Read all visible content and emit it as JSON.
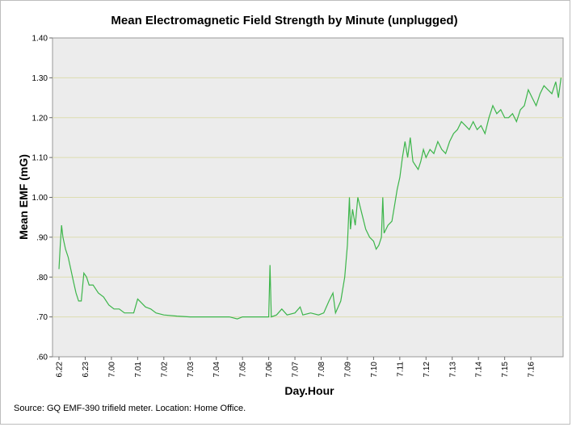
{
  "chart_data": {
    "type": "line",
    "title": "Mean Electromagnetic Field Strength by Minute (unplugged)",
    "xlabel": "Day.Hour",
    "ylabel": "Mean EMF (mG)",
    "ylim": [
      0.6,
      1.4
    ],
    "yticks": [
      "1.40",
      "1.30",
      "1.20",
      "1.10",
      "1.00",
      ".90",
      ".80",
      ".70",
      ".60"
    ],
    "ytick_values": [
      1.4,
      1.3,
      1.2,
      1.1,
      1.0,
      0.9,
      0.8,
      0.7,
      0.6
    ],
    "xlim": [
      6.2,
      7.17
    ],
    "xticks": [
      "6.22",
      "6.23",
      "7.00",
      "7.01",
      "7.02",
      "7.03",
      "7.04",
      "7.05",
      "7.06",
      "7.07",
      "7.08",
      "7.09",
      "7.10",
      "7.11",
      "7.12",
      "7.13",
      "7.14",
      "7.15",
      "7.16"
    ],
    "xtick_positions": [
      0,
      1,
      2,
      3,
      4,
      5,
      6,
      7,
      8,
      9,
      10,
      11,
      12,
      13,
      14,
      15,
      16,
      17,
      18
    ],
    "xrange_hours": [
      0,
      19.2
    ],
    "grid": true,
    "series": [
      {
        "name": "Mean EMF",
        "color": "#3cb54a",
        "points": [
          [
            0.0,
            0.82
          ],
          [
            0.05,
            0.88
          ],
          [
            0.1,
            0.93
          ],
          [
            0.15,
            0.9
          ],
          [
            0.25,
            0.87
          ],
          [
            0.35,
            0.85
          ],
          [
            0.45,
            0.82
          ],
          [
            0.55,
            0.79
          ],
          [
            0.65,
            0.76
          ],
          [
            0.75,
            0.74
          ],
          [
            0.85,
            0.74
          ],
          [
            0.95,
            0.81
          ],
          [
            1.05,
            0.8
          ],
          [
            1.15,
            0.78
          ],
          [
            1.3,
            0.78
          ],
          [
            1.5,
            0.76
          ],
          [
            1.7,
            0.75
          ],
          [
            1.9,
            0.73
          ],
          [
            2.1,
            0.72
          ],
          [
            2.3,
            0.72
          ],
          [
            2.5,
            0.71
          ],
          [
            2.7,
            0.71
          ],
          [
            2.85,
            0.71
          ],
          [
            3.0,
            0.745
          ],
          [
            3.15,
            0.735
          ],
          [
            3.3,
            0.725
          ],
          [
            3.5,
            0.72
          ],
          [
            3.7,
            0.71
          ],
          [
            4.0,
            0.705
          ],
          [
            4.5,
            0.702
          ],
          [
            5.0,
            0.7
          ],
          [
            5.5,
            0.7
          ],
          [
            6.0,
            0.7
          ],
          [
            6.5,
            0.7
          ],
          [
            6.8,
            0.695
          ],
          [
            7.0,
            0.7
          ],
          [
            7.3,
            0.7
          ],
          [
            7.6,
            0.7
          ],
          [
            7.9,
            0.7
          ],
          [
            8.0,
            0.7
          ],
          [
            8.05,
            0.83
          ],
          [
            8.1,
            0.7
          ],
          [
            8.3,
            0.705
          ],
          [
            8.5,
            0.72
          ],
          [
            8.7,
            0.705
          ],
          [
            9.0,
            0.71
          ],
          [
            9.2,
            0.725
          ],
          [
            9.3,
            0.705
          ],
          [
            9.6,
            0.71
          ],
          [
            9.9,
            0.705
          ],
          [
            10.1,
            0.71
          ],
          [
            10.3,
            0.74
          ],
          [
            10.45,
            0.76
          ],
          [
            10.55,
            0.71
          ],
          [
            10.75,
            0.74
          ],
          [
            10.9,
            0.8
          ],
          [
            11.0,
            0.88
          ],
          [
            11.08,
            1.0
          ],
          [
            11.12,
            0.92
          ],
          [
            11.2,
            0.97
          ],
          [
            11.3,
            0.93
          ],
          [
            11.4,
            1.0
          ],
          [
            11.55,
            0.96
          ],
          [
            11.7,
            0.92
          ],
          [
            11.85,
            0.9
          ],
          [
            12.0,
            0.89
          ],
          [
            12.1,
            0.87
          ],
          [
            12.2,
            0.88
          ],
          [
            12.3,
            0.9
          ],
          [
            12.35,
            1.0
          ],
          [
            12.4,
            0.91
          ],
          [
            12.55,
            0.93
          ],
          [
            12.7,
            0.94
          ],
          [
            12.8,
            0.98
          ],
          [
            12.9,
            1.02
          ],
          [
            13.0,
            1.05
          ],
          [
            13.1,
            1.1
          ],
          [
            13.2,
            1.14
          ],
          [
            13.3,
            1.1
          ],
          [
            13.4,
            1.15
          ],
          [
            13.5,
            1.09
          ],
          [
            13.6,
            1.08
          ],
          [
            13.7,
            1.07
          ],
          [
            13.8,
            1.09
          ],
          [
            13.9,
            1.12
          ],
          [
            14.0,
            1.1
          ],
          [
            14.15,
            1.12
          ],
          [
            14.3,
            1.11
          ],
          [
            14.45,
            1.14
          ],
          [
            14.6,
            1.12
          ],
          [
            14.75,
            1.11
          ],
          [
            14.9,
            1.14
          ],
          [
            15.05,
            1.16
          ],
          [
            15.2,
            1.17
          ],
          [
            15.35,
            1.19
          ],
          [
            15.5,
            1.18
          ],
          [
            15.65,
            1.17
          ],
          [
            15.8,
            1.19
          ],
          [
            15.95,
            1.17
          ],
          [
            16.1,
            1.18
          ],
          [
            16.25,
            1.16
          ],
          [
            16.4,
            1.2
          ],
          [
            16.55,
            1.23
          ],
          [
            16.7,
            1.21
          ],
          [
            16.85,
            1.22
          ],
          [
            17.0,
            1.2
          ],
          [
            17.15,
            1.2
          ],
          [
            17.3,
            1.21
          ],
          [
            17.45,
            1.19
          ],
          [
            17.6,
            1.22
          ],
          [
            17.75,
            1.23
          ],
          [
            17.9,
            1.27
          ],
          [
            18.05,
            1.25
          ],
          [
            18.2,
            1.23
          ],
          [
            18.35,
            1.26
          ],
          [
            18.5,
            1.28
          ],
          [
            18.65,
            1.27
          ],
          [
            18.8,
            1.26
          ],
          [
            18.95,
            1.29
          ],
          [
            19.05,
            1.25
          ],
          [
            19.15,
            1.3
          ]
        ]
      }
    ]
  },
  "footer": {
    "source": "Source: GQ EMF-390 trifield meter. Location: Home Office."
  },
  "colors": {
    "plot_background": "#ececec",
    "gridline": "#dcdcb0",
    "line": "#3cb54a"
  }
}
